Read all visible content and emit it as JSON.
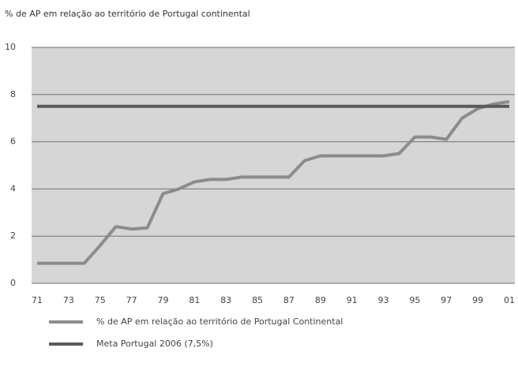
{
  "chart_data": {
    "type": "line",
    "title": "% de AP em relação ao território de Portugal continental",
    "categories": [
      "71",
      null,
      "73",
      null,
      "75",
      null,
      "77",
      null,
      "79",
      null,
      "81",
      null,
      "83",
      null,
      "85",
      null,
      "87",
      null,
      "89",
      null,
      "91",
      null,
      "93",
      null,
      "95",
      null,
      "97",
      null,
      "99",
      null,
      "01"
    ],
    "series": [
      {
        "name": "% de AP em relação ao território de Portugal Continental",
        "color": "#8c8c8c",
        "values": [
          0.85,
          0.85,
          0.85,
          0.85,
          1.6,
          2.4,
          2.3,
          2.35,
          3.8,
          4.0,
          4.3,
          4.4,
          4.4,
          4.5,
          4.5,
          4.5,
          4.5,
          5.2,
          5.4,
          5.4,
          5.4,
          5.4,
          5.4,
          5.5,
          6.2,
          6.2,
          6.1,
          7.0,
          7.4,
          7.6,
          7.7
        ]
      },
      {
        "name": "Meta Portugal 2006 (7,5%)",
        "color": "#5a5a5a",
        "values": [
          7.5,
          7.5,
          7.5,
          7.5,
          7.5,
          7.5,
          7.5,
          7.5,
          7.5,
          7.5,
          7.5,
          7.5,
          7.5,
          7.5,
          7.5,
          7.5,
          7.5,
          7.5,
          7.5,
          7.5,
          7.5,
          7.5,
          7.5,
          7.5,
          7.5,
          7.5,
          7.5,
          7.5,
          7.5,
          7.5,
          7.5
        ]
      }
    ],
    "ylim": [
      0,
      10
    ],
    "yticks": [
      0,
      2,
      4,
      6,
      8,
      10
    ],
    "grid": true
  }
}
